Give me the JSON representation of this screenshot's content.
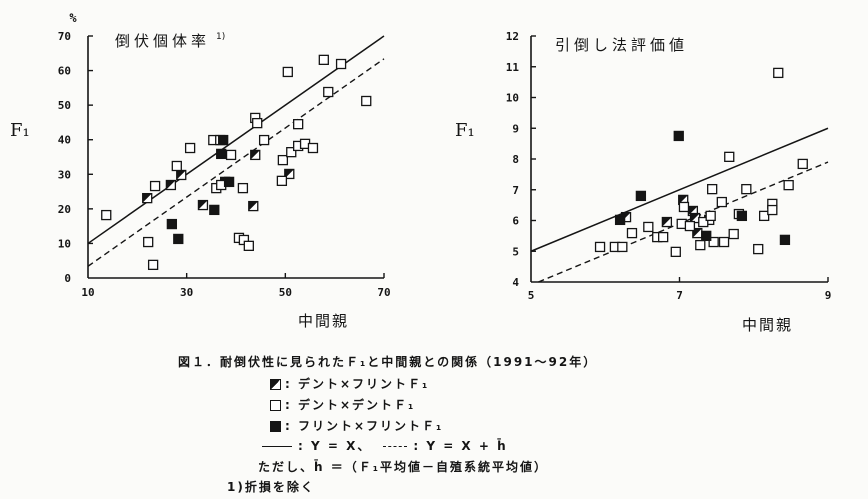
{
  "chart_data": [
    {
      "type": "scatter",
      "title": "倒伏個体率",
      "title_note": "1)",
      "ylabel": "F₁",
      "yunit": "%",
      "xlabel": "中間親",
      "xlim": [
        10,
        70
      ],
      "ylim": [
        0,
        70
      ],
      "xticks": [
        10,
        30,
        50,
        70
      ],
      "yticks": [
        0,
        10,
        20,
        30,
        40,
        50,
        60,
        70
      ],
      "grid": false,
      "lines": [
        {
          "style": "solid",
          "slope": 1,
          "offset": 0
        },
        {
          "style": "dashed",
          "slope": 1,
          "offset": -6.6
        }
      ],
      "series": [
        {
          "marker": "half-filled-square",
          "points": [
            [
              22.0,
              23.1
            ],
            [
              26.8,
              26.9
            ],
            [
              28.9,
              29.8
            ],
            [
              33.3,
              21.1
            ],
            [
              37.8,
              27.8
            ],
            [
              43.5,
              20.8
            ],
            [
              43.9,
              35.6
            ],
            [
              50.8,
              30.1
            ]
          ]
        },
        {
          "marker": "open-square",
          "points": [
            [
              13.7,
              18.2
            ],
            [
              22.2,
              10.4
            ],
            [
              23.2,
              3.8
            ],
            [
              23.6,
              26.6
            ],
            [
              28.0,
              32.4
            ],
            [
              30.7,
              37.6
            ],
            [
              35.4,
              39.9
            ],
            [
              36.0,
              26.0
            ],
            [
              36.8,
              39.9
            ],
            [
              37.0,
              26.9
            ],
            [
              39.0,
              35.6
            ],
            [
              40.6,
              11.6
            ],
            [
              41.4,
              26.0
            ],
            [
              41.6,
              11.0
            ],
            [
              42.6,
              9.3
            ],
            [
              43.9,
              46.3
            ],
            [
              44.3,
              44.8
            ],
            [
              45.7,
              39.9
            ],
            [
              49.3,
              28.1
            ],
            [
              49.5,
              34.1
            ],
            [
              50.5,
              59.6
            ],
            [
              51.2,
              36.4
            ],
            [
              52.6,
              44.5
            ],
            [
              52.6,
              38.2
            ],
            [
              54.0,
              38.8
            ],
            [
              55.6,
              37.6
            ],
            [
              57.8,
              63.1
            ],
            [
              58.7,
              53.8
            ],
            [
              61.3,
              61.9
            ],
            [
              66.4,
              51.2
            ]
          ]
        },
        {
          "marker": "filled-square",
          "points": [
            [
              27.0,
              15.6
            ],
            [
              28.3,
              11.3
            ],
            [
              35.6,
              19.7
            ],
            [
              37.0,
              35.9
            ],
            [
              37.4,
              39.9
            ],
            [
              38.6,
              27.8
            ]
          ]
        }
      ]
    },
    {
      "type": "scatter",
      "title": "引倒し法評価値",
      "ylabel": "F₁",
      "xlabel": "中間親",
      "xlim": [
        5,
        9
      ],
      "ylim": [
        4,
        12
      ],
      "xticks": [
        5,
        7,
        9
      ],
      "yticks": [
        4,
        5,
        6,
        7,
        8,
        9,
        10,
        11,
        12
      ],
      "grid": false,
      "lines": [
        {
          "style": "solid",
          "slope": 1,
          "offset": 0
        },
        {
          "style": "dashed",
          "slope": 1,
          "offset": -1.1
        }
      ],
      "series": [
        {
          "marker": "half-filled-square",
          "points": [
            [
              6.28,
              6.11
            ],
            [
              6.83,
              5.95
            ],
            [
              7.05,
              6.67
            ],
            [
              7.18,
              6.31
            ],
            [
              7.21,
              6.08
            ],
            [
              7.24,
              5.59
            ],
            [
              7.4,
              6.02
            ]
          ]
        },
        {
          "marker": "open-square",
          "points": [
            [
              5.93,
              5.14
            ],
            [
              6.13,
              5.14
            ],
            [
              6.23,
              5.14
            ],
            [
              6.36,
              5.59
            ],
            [
              6.58,
              5.79
            ],
            [
              6.7,
              5.46
            ],
            [
              6.78,
              5.46
            ],
            [
              6.95,
              4.98
            ],
            [
              7.03,
              5.89
            ],
            [
              7.06,
              6.44
            ],
            [
              7.14,
              5.82
            ],
            [
              7.28,
              5.2
            ],
            [
              7.32,
              5.95
            ],
            [
              7.42,
              6.15
            ],
            [
              7.44,
              7.02
            ],
            [
              7.46,
              5.3
            ],
            [
              7.57,
              6.6
            ],
            [
              7.6,
              5.3
            ],
            [
              7.67,
              8.07
            ],
            [
              7.73,
              5.56
            ],
            [
              7.8,
              6.21
            ],
            [
              7.9,
              7.02
            ],
            [
              8.06,
              5.07
            ],
            [
              8.14,
              6.15
            ],
            [
              8.25,
              6.54
            ],
            [
              8.25,
              6.34
            ],
            [
              8.33,
              10.8
            ],
            [
              8.47,
              7.15
            ],
            [
              8.66,
              7.84
            ]
          ]
        },
        {
          "marker": "filled-square",
          "points": [
            [
              6.2,
              6.02
            ],
            [
              6.48,
              6.8
            ],
            [
              6.99,
              8.75
            ],
            [
              7.36,
              5.5
            ],
            [
              7.84,
              6.15
            ],
            [
              8.42,
              5.37
            ]
          ]
        }
      ]
    }
  ],
  "caption": {
    "title": "図１．耐倒伏性に見られたＦ₁と中間親との関係（1991～92年）",
    "legend": [
      {
        "marker": "half-filled-square",
        "label": ": デント×フリントＦ₁"
      },
      {
        "marker": "open-square",
        "label": ": デント×デントＦ₁"
      },
      {
        "marker": "filled-square",
        "label": ": フリント×フリントＦ₁"
      }
    ],
    "line_legend": [
      {
        "style": "solid",
        "label": ": Y = X、"
      },
      {
        "style": "dashed",
        "label": ": Y = X + h̄"
      }
    ],
    "definition": "ただし、h̄ ＝（Ｆ₁平均値－自殖系統平均値）",
    "footnote": "1)折損を除く"
  }
}
